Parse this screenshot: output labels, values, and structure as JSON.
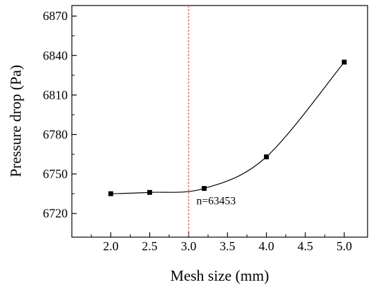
{
  "chart_data": {
    "type": "scatter",
    "xlabel": "Mesh size (mm)",
    "ylabel": "Pressure drop (Pa)",
    "xlim": [
      1.5,
      5.3
    ],
    "ylim": [
      6702,
      6878
    ],
    "x_ticks": [
      "2.0",
      "2.5",
      "3.0",
      "3.5",
      "4.0",
      "4.5",
      "5.0"
    ],
    "y_ticks": [
      "6720",
      "6750",
      "6780",
      "6810",
      "6840",
      "6870"
    ],
    "x_tick_values": [
      2.0,
      2.5,
      3.0,
      3.5,
      4.0,
      4.5,
      5.0
    ],
    "y_tick_values": [
      6720,
      6750,
      6780,
      6810,
      6840,
      6870
    ],
    "series": [
      {
        "x": [
          2.0,
          2.5,
          3.2,
          4.0,
          5.0
        ],
        "y": [
          6735,
          6736,
          6739,
          6763,
          6835
        ],
        "marker": "square",
        "color": "#000000",
        "smooth_line": true
      }
    ],
    "reference_line": {
      "orientation": "vertical",
      "x": 3.0,
      "color": "#e05050",
      "style": "dashed"
    },
    "annotation": {
      "text": "n=63453",
      "x": 3.1,
      "y": 6727
    },
    "grid": false,
    "legend": "none"
  }
}
